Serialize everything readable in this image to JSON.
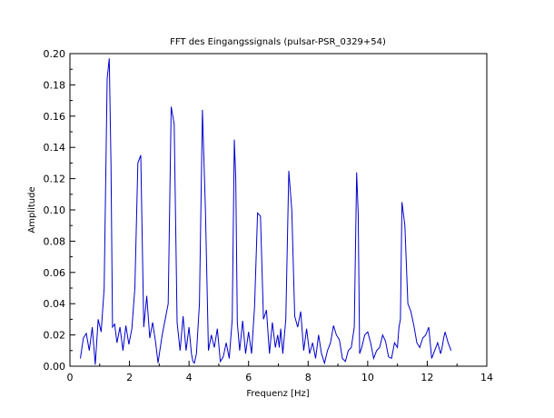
{
  "chart_data": {
    "type": "line",
    "title": "FFT des Eingangssignals (pulsar-PSR_0329+54)",
    "xlabel": "Frequenz [Hz]",
    "ylabel": "Amplitude",
    "xlim": [
      0,
      14
    ],
    "ylim": [
      0,
      0.2
    ],
    "xticks": [
      "0",
      "2",
      "4",
      "6",
      "8",
      "10",
      "12",
      "14"
    ],
    "yticks": [
      "0.00",
      "0.02",
      "0.04",
      "0.06",
      "0.08",
      "0.10",
      "0.12",
      "0.14",
      "0.16",
      "0.18",
      "0.20"
    ],
    "grid": false,
    "line_color": "#0000cc",
    "series": [
      {
        "x": [
          0.35,
          0.45,
          0.55,
          0.65,
          0.75,
          0.85,
          0.95,
          1.05,
          1.15,
          1.25,
          1.32,
          1.38,
          1.43,
          1.5,
          1.58,
          1.68,
          1.78,
          1.88,
          1.98,
          2.08,
          2.18,
          2.28,
          2.38,
          2.48,
          2.58,
          2.68,
          2.78,
          2.88,
          2.96,
          3.02,
          3.1,
          3.2,
          3.3,
          3.4,
          3.5,
          3.6,
          3.7,
          3.8,
          3.9,
          4.0,
          4.08,
          4.13,
          4.18,
          4.25,
          4.35,
          4.45,
          4.55,
          4.65,
          4.75,
          4.85,
          4.95,
          5.05,
          5.15,
          5.25,
          5.35,
          5.45,
          5.52,
          5.57,
          5.62,
          5.7,
          5.8,
          5.9,
          6.0,
          6.1,
          6.2,
          6.3,
          6.4,
          6.5,
          6.6,
          6.7,
          6.8,
          6.9,
          6.98,
          7.03,
          7.08,
          7.15,
          7.25,
          7.35,
          7.45,
          7.55,
          7.65,
          7.75,
          7.85,
          7.95,
          8.05,
          8.15,
          8.25,
          8.35,
          8.45,
          8.55,
          8.65,
          8.75,
          8.85,
          8.95,
          9.05,
          9.15,
          9.25,
          9.35,
          9.45,
          9.55,
          9.63,
          9.68,
          9.73,
          9.8,
          9.9,
          10.0,
          10.1,
          10.2,
          10.3,
          10.4,
          10.5,
          10.6,
          10.7,
          10.8,
          10.9,
          11.0,
          11.05,
          11.1,
          11.15,
          11.25,
          11.35,
          11.45,
          11.55,
          11.65,
          11.75,
          11.85,
          11.95,
          12.05,
          12.15,
          12.25,
          12.35,
          12.45,
          12.5,
          12.55,
          12.6,
          12.7,
          12.8
        ],
        "y": [
          0.005,
          0.018,
          0.021,
          0.01,
          0.025,
          0.001,
          0.03,
          0.022,
          0.05,
          0.184,
          0.197,
          0.13,
          0.025,
          0.027,
          0.015,
          0.025,
          0.01,
          0.026,
          0.014,
          0.024,
          0.05,
          0.13,
          0.135,
          0.025,
          0.045,
          0.018,
          0.028,
          0.015,
          0.002,
          0.01,
          0.02,
          0.03,
          0.04,
          0.166,
          0.155,
          0.028,
          0.01,
          0.032,
          0.01,
          0.025,
          0.008,
          0.003,
          0.002,
          0.008,
          0.04,
          0.164,
          0.1,
          0.01,
          0.02,
          0.012,
          0.024,
          0.003,
          0.006,
          0.015,
          0.005,
          0.03,
          0.145,
          0.12,
          0.028,
          0.01,
          0.029,
          0.008,
          0.022,
          0.008,
          0.038,
          0.098,
          0.096,
          0.03,
          0.036,
          0.008,
          0.028,
          0.012,
          0.02,
          0.012,
          0.024,
          0.008,
          0.03,
          0.125,
          0.1,
          0.032,
          0.025,
          0.035,
          0.01,
          0.024,
          0.008,
          0.015,
          0.005,
          0.02,
          0.008,
          0.002,
          0.01,
          0.015,
          0.026,
          0.02,
          0.017,
          0.005,
          0.003,
          0.01,
          0.012,
          0.025,
          0.124,
          0.098,
          0.008,
          0.012,
          0.02,
          0.022,
          0.015,
          0.005,
          0.01,
          0.012,
          0.02,
          0.016,
          0.006,
          0.005,
          0.015,
          0.012,
          0.025,
          0.03,
          0.105,
          0.09,
          0.04,
          0.035,
          0.026,
          0.015,
          0.012,
          0.018,
          0.02,
          0.025,
          0.005,
          0.01,
          0.015,
          0.008,
          0.012,
          0.018,
          0.022,
          0.015,
          0.01
        ]
      }
    ]
  }
}
